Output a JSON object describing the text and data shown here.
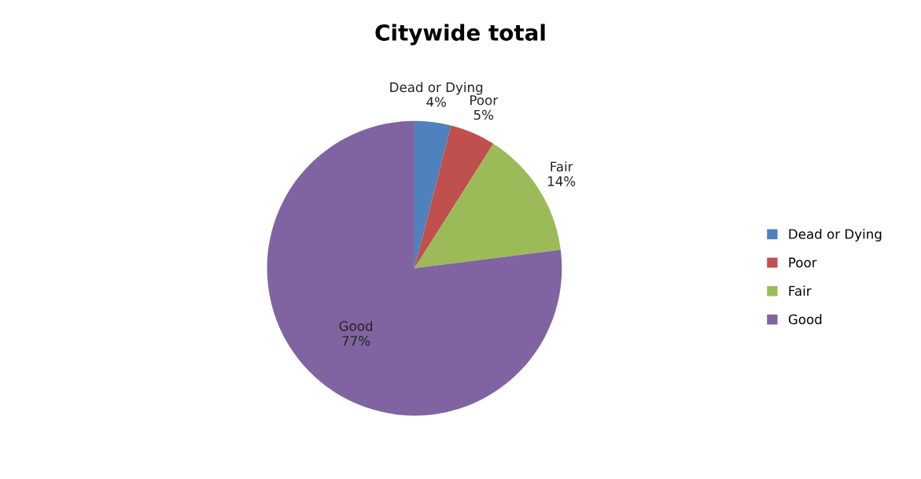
{
  "chart_data": {
    "type": "pie",
    "title": "Citywide total",
    "categories": [
      "Dead or Dying",
      "Poor",
      "Fair",
      "Good"
    ],
    "values": [
      4,
      5,
      14,
      77
    ],
    "value_labels": [
      "4%",
      "5%",
      "14%",
      "77%"
    ],
    "colors": [
      "#4f81bd",
      "#c0504d",
      "#9bbb59",
      "#8064a2"
    ],
    "legend": "right"
  }
}
